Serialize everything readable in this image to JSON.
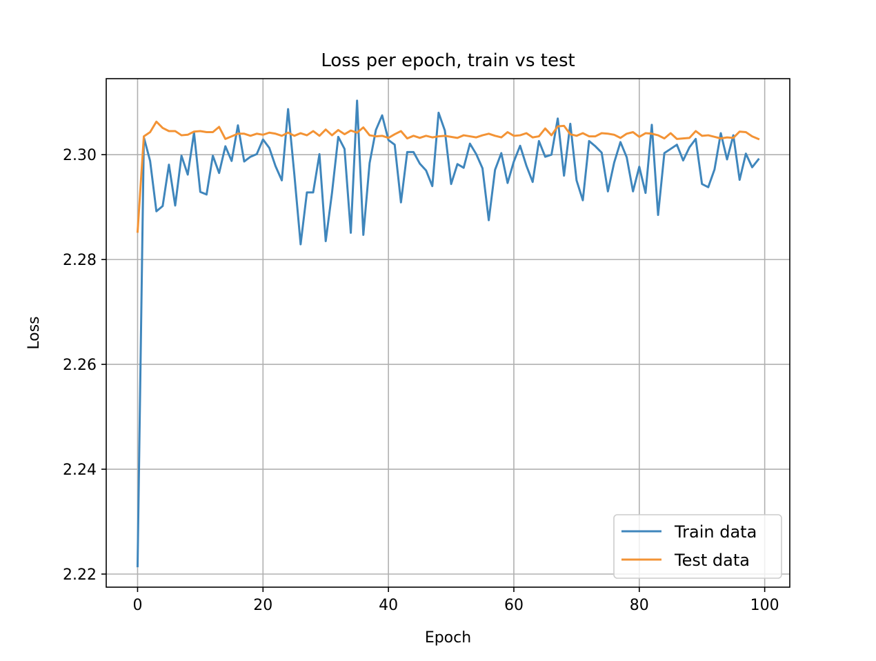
{
  "chart_data": {
    "type": "line",
    "title": "Loss per epoch, train vs test",
    "xlabel": "Epoch",
    "ylabel": "Loss",
    "xlim": [
      -5,
      104
    ],
    "ylim": [
      2.2175,
      2.3145
    ],
    "xticks": [
      0,
      20,
      40,
      60,
      80,
      100
    ],
    "yticks": [
      2.22,
      2.24,
      2.26,
      2.28,
      2.3
    ],
    "xtick_labels": [
      "0",
      "20",
      "40",
      "60",
      "80",
      "100"
    ],
    "ytick_labels": [
      "2.22",
      "2.24",
      "2.26",
      "2.28",
      "2.30"
    ],
    "grid": true,
    "legend_position": "bottom-right",
    "series": [
      {
        "name": "Train data",
        "color": "#3f86bc",
        "values": [
          2.2215,
          2.3033,
          2.2988,
          2.2892,
          2.2902,
          2.2981,
          2.2903,
          2.2998,
          2.2962,
          2.3042,
          2.2929,
          2.2924,
          2.2998,
          2.2965,
          2.3016,
          2.2988,
          2.3056,
          2.2987,
          2.2996,
          2.3001,
          2.3029,
          2.3013,
          2.2978,
          2.2951,
          2.3087,
          2.2962,
          2.2829,
          2.2928,
          2.2928,
          2.3001,
          2.2835,
          2.2927,
          2.3034,
          2.3011,
          2.2851,
          2.3103,
          2.2847,
          2.2984,
          2.3047,
          2.3075,
          2.3028,
          2.3019,
          2.2909,
          2.3005,
          2.3005,
          2.2983,
          2.297,
          2.294,
          2.308,
          2.3046,
          2.2944,
          2.2982,
          2.2975,
          2.3021,
          2.3001,
          2.2974,
          2.2875,
          2.2971,
          2.3003,
          2.2946,
          2.2987,
          2.3017,
          2.2979,
          2.2948,
          2.3026,
          2.2996,
          2.3,
          2.3069,
          2.296,
          2.3059,
          2.2951,
          2.2913,
          2.3026,
          2.3016,
          2.3004,
          2.293,
          2.2985,
          2.3024,
          2.2995,
          2.293,
          2.2977,
          2.2927,
          2.3057,
          2.2885,
          2.3003,
          2.3011,
          2.3019,
          2.2989,
          2.3014,
          2.303,
          2.2944,
          2.2938,
          2.2972,
          2.3041,
          2.2991,
          2.3037,
          2.2952,
          2.3002,
          2.2976,
          2.2991
        ]
      },
      {
        "name": "Test data",
        "color": "#f39335",
        "values": [
          2.2853,
          2.3035,
          2.3043,
          2.3063,
          2.3051,
          2.3045,
          2.3045,
          2.3037,
          2.3038,
          2.3044,
          2.3045,
          2.3043,
          2.3043,
          2.3053,
          2.303,
          2.3035,
          2.304,
          2.304,
          2.3036,
          2.304,
          2.3038,
          2.3042,
          2.304,
          2.3036,
          2.3042,
          2.3036,
          2.3041,
          2.3037,
          2.3045,
          2.3036,
          2.3048,
          2.3037,
          2.3047,
          2.3039,
          2.3046,
          2.3042,
          2.3052,
          2.3037,
          2.3035,
          2.3036,
          2.3032,
          2.3039,
          2.3045,
          2.3031,
          2.3036,
          2.3032,
          2.3036,
          2.3033,
          2.3035,
          2.3036,
          2.3034,
          2.3032,
          2.3037,
          2.3035,
          2.3033,
          2.3037,
          2.304,
          2.3036,
          2.3033,
          2.3043,
          2.3036,
          2.3037,
          2.3041,
          2.3033,
          2.3035,
          2.305,
          2.3037,
          2.3054,
          2.3055,
          2.3039,
          2.3036,
          2.3041,
          2.3035,
          2.3035,
          2.3041,
          2.304,
          2.3038,
          2.3032,
          2.304,
          2.3043,
          2.3034,
          2.3041,
          2.304,
          2.3037,
          2.3031,
          2.3041,
          2.303,
          2.3031,
          2.3032,
          2.3045,
          2.3036,
          2.3037,
          2.3034,
          2.3031,
          2.3033,
          2.3032,
          2.3044,
          2.3043,
          2.3035,
          2.303
        ]
      }
    ]
  }
}
